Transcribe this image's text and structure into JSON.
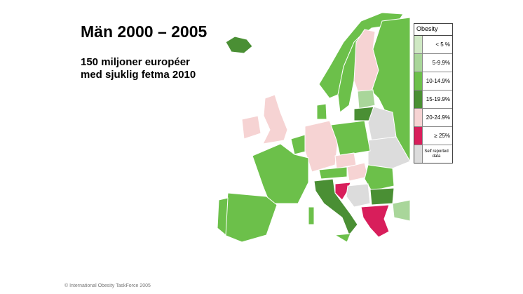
{
  "header": {
    "title": "Män 2000 – 2005",
    "subtitle_lines": [
      "150 miljoner européer",
      "med sjuklig fetma 2010"
    ]
  },
  "legend": {
    "title": "Obesity",
    "items": [
      {
        "label": "< 5 %",
        "color": "#cfe8c4"
      },
      {
        "label": "5-9.9%",
        "color": "#a9d69a"
      },
      {
        "label": "10-14.9%",
        "color": "#6cc04a"
      },
      {
        "label": "15-19.9%",
        "color": "#4a8f34"
      },
      {
        "label": "20-24.9%",
        "color": "#f6d3d3"
      },
      {
        "label": "≥ 25%",
        "color": "#d81e5b"
      },
      {
        "label": "Self reported data",
        "color": "#dcdcdc"
      }
    ]
  },
  "footer": {
    "credit": "© International Obesity TaskForce 2005"
  }
}
